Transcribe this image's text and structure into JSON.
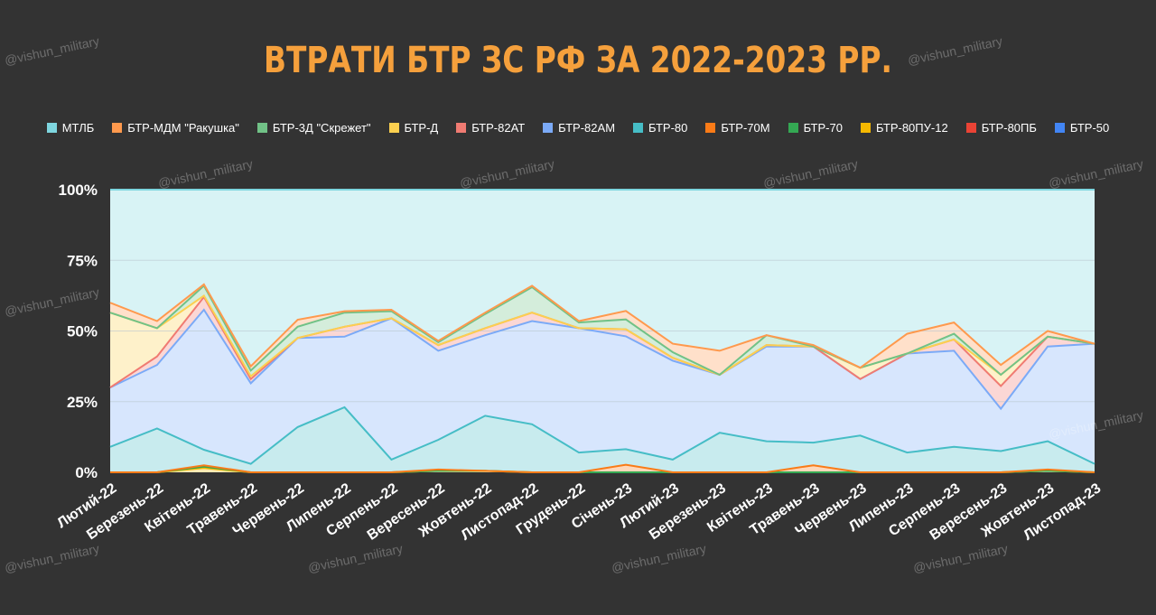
{
  "title": "ВТРАТИ БТР ЗС РФ ЗА 2022-2023 РР.",
  "watermark": "@vishun_military",
  "chart_data": {
    "type": "area",
    "stacked": "percent",
    "categories": [
      "Лютий-22",
      "Березень-22",
      "Квітень-22",
      "Травень-22",
      "Червень-22",
      "Липень-22",
      "Серпень-22",
      "Вересень-22",
      "Жовтень-22",
      "Листопад-22",
      "Грудень-22",
      "Січень-23",
      "Лютий-23",
      "Березень-23",
      "Квітень-23",
      "Травень-23",
      "Червень-23",
      "Липень-23",
      "Серпень-23",
      "Вересень-23",
      "Жовтень-23",
      "Листопад-23"
    ],
    "ylim": [
      0,
      100
    ],
    "yticks": [
      "0%",
      "25%",
      "50%",
      "75%",
      "100%"
    ],
    "legend_position": "top",
    "series": [
      {
        "name": "БТР-80ПУ-12",
        "color": "#f5b800",
        "values": [
          0,
          0,
          1.5,
          0,
          0,
          0,
          0,
          0.5,
          0.5,
          0,
          0,
          0,
          0,
          0,
          0,
          0,
          0,
          0,
          0,
          0,
          0.5,
          0
        ]
      },
      {
        "name": "БТР-70",
        "color": "#34a853",
        "values": [
          0,
          0,
          0.5,
          0,
          0,
          0,
          0,
          0,
          0,
          0,
          0,
          0,
          0,
          0,
          0,
          0,
          0,
          0,
          0,
          0,
          0,
          0
        ]
      },
      {
        "name": "БТР-70М",
        "color": "#fa7b17",
        "values": [
          0,
          0,
          0.5,
          0,
          0,
          0,
          0,
          0.5,
          0,
          0,
          0,
          2.7,
          0,
          0,
          0,
          2.5,
          0,
          0,
          0,
          0,
          0.5,
          0
        ]
      },
      {
        "name": "БТР-80",
        "color": "#46bdc6",
        "values": [
          9,
          15.5,
          5.5,
          3,
          16,
          23,
          4.5,
          10.5,
          19.5,
          17,
          7,
          5.5,
          4.5,
          14,
          11,
          8,
          13,
          7,
          9,
          7.5,
          10,
          3
        ]
      },
      {
        "name": "БТР-82АМ",
        "color": "#7baaf7",
        "values": [
          21,
          22.5,
          49.5,
          28.5,
          31.5,
          25,
          50,
          31.5,
          28.5,
          36.5,
          44,
          40,
          35,
          20.5,
          33.5,
          34,
          20,
          35,
          34,
          15,
          33.5,
          42.5
        ]
      },
      {
        "name": "БТР-82АТ",
        "color": "#f07b72",
        "values": [
          0,
          3,
          4.5,
          1.5,
          0,
          3.5,
          0,
          2,
          2.5,
          3,
          0,
          2.5,
          1,
          0,
          0.5,
          0,
          0,
          0,
          4,
          8,
          3.5,
          0
        ]
      },
      {
        "name": "БТР-Д",
        "color": "#fcd04f",
        "values": [
          26.5,
          10,
          0.5,
          1,
          0,
          0,
          0,
          0,
          0,
          0,
          0,
          0,
          0,
          0,
          0,
          0,
          4,
          0,
          0,
          4,
          0,
          0
        ]
      },
      {
        "name": "БТР-3Д \"Скрежет\"",
        "color": "#71c287",
        "values": [
          0,
          0,
          3.5,
          2,
          4,
          5,
          2.5,
          1,
          5,
          9,
          2,
          3.5,
          2,
          0,
          3.5,
          0,
          0,
          0,
          2,
          0,
          0,
          0
        ]
      },
      {
        "name": "БТР-МДМ \"Ракушка\"",
        "color": "#ff994d",
        "values": [
          3.5,
          2.5,
          0.5,
          1.5,
          2.5,
          0.5,
          0.5,
          0.5,
          0.5,
          0.5,
          0.5,
          3,
          3,
          8.5,
          0,
          0.5,
          0,
          7,
          4,
          3.5,
          2,
          0
        ]
      },
      {
        "name": "МТЛБ",
        "color": "#7ed6df",
        "values": [
          40,
          46.5,
          33.5,
          62.5,
          46,
          43,
          42.5,
          53.5,
          43.5,
          34,
          46.5,
          43,
          54.5,
          57,
          51.5,
          55,
          63,
          51,
          47,
          62,
          50,
          54.5
        ]
      },
      {
        "name": "БТР-80ПБ",
        "color": "#ea4335",
        "values": [
          0,
          0,
          0,
          0,
          0,
          0,
          0,
          0,
          0,
          0,
          0,
          0,
          0,
          0,
          0,
          0,
          0,
          0,
          0,
          0,
          0,
          0
        ]
      },
      {
        "name": "БТР-50",
        "color": "#4285f4",
        "values": [
          0,
          0,
          0,
          0,
          0,
          0,
          0,
          0,
          0,
          0,
          0,
          0,
          0,
          0,
          0,
          0,
          0,
          0,
          0,
          0,
          0,
          0
        ]
      }
    ],
    "legend": [
      {
        "name": "МТЛБ",
        "color": "#7ed6df"
      },
      {
        "name": "БТР-МДМ \"Ракушка\"",
        "color": "#ff994d"
      },
      {
        "name": "БТР-3Д \"Скрежет\"",
        "color": "#71c287"
      },
      {
        "name": "БТР-Д",
        "color": "#fcd04f"
      },
      {
        "name": "БТР-82АТ",
        "color": "#f07b72"
      },
      {
        "name": "БТР-82АМ",
        "color": "#7baaf7"
      },
      {
        "name": "БТР-80",
        "color": "#46bdc6"
      },
      {
        "name": "БТР-70М",
        "color": "#fa7b17"
      },
      {
        "name": "БТР-70",
        "color": "#34a853"
      },
      {
        "name": "БТР-80ПУ-12",
        "color": "#f5b800"
      },
      {
        "name": "БТР-80ПБ",
        "color": "#ea4335"
      },
      {
        "name": "БТР-50",
        "color": "#4285f4"
      }
    ]
  }
}
